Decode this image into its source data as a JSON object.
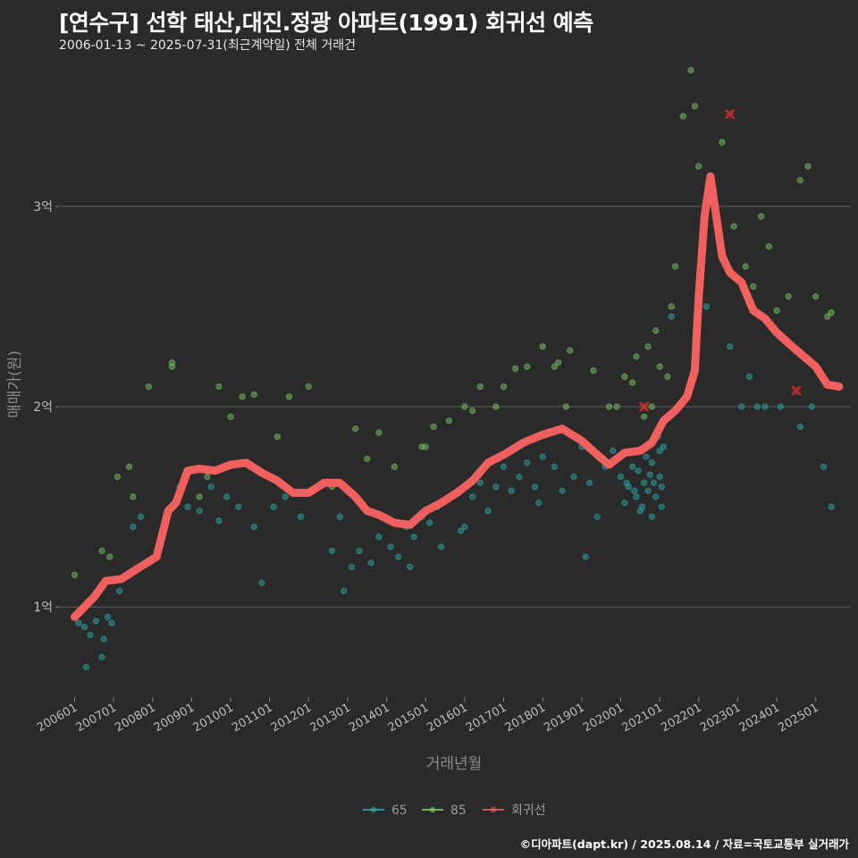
{
  "title": "[연수구] 선학 태산,대진.정광 아파트(1991) 회귀선 예측",
  "subtitle": "2006-01-13 ~ 2025-07-31(최근계약일) 전체 거래건",
  "footer": "©디아파트(dapt.kr) / 2025.08.14 / 자료=국토교통부 실거래가",
  "chart_data": {
    "type": "scatter",
    "xlabel": "거래년월",
    "ylabel": "매매가(원)",
    "xlim": [
      2005.6,
      2025.9
    ],
    "ylim": [
      0.55,
      3.7
    ],
    "y_unit": "억",
    "yticks": [
      {
        "v": 1,
        "label": "1억"
      },
      {
        "v": 2,
        "label": "2억"
      },
      {
        "v": 3,
        "label": "3억"
      }
    ],
    "xticks": [
      "200601",
      "200701",
      "200801",
      "200901",
      "201001",
      "201101",
      "201201",
      "201301",
      "201401",
      "201501",
      "201601",
      "201701",
      "201801",
      "201901",
      "202001",
      "202101",
      "202201",
      "202301",
      "202401",
      "202501"
    ],
    "colors": {
      "s65": "#2bb3b1",
      "s85": "#7fd26b",
      "reg": "#f0605f",
      "marker": "#c8312f"
    },
    "legend": [
      {
        "name": "65",
        "color": "#2bb3b1"
      },
      {
        "name": "85",
        "color": "#7fd26b"
      },
      {
        "name": "회귀선",
        "color": "#f0605f"
      }
    ],
    "series": [
      {
        "name": "65",
        "points": [
          [
            2006.1,
            0.92
          ],
          [
            2006.25,
            0.9
          ],
          [
            2006.4,
            0.86
          ],
          [
            2006.55,
            0.93
          ],
          [
            2006.75,
            0.84
          ],
          [
            2006.85,
            0.95
          ],
          [
            2006.3,
            0.7
          ],
          [
            2006.7,
            0.75
          ],
          [
            2006.95,
            0.92
          ],
          [
            2007.15,
            1.08
          ],
          [
            2007.5,
            1.4
          ],
          [
            2007.7,
            1.45
          ],
          [
            2008.7,
            1.6
          ],
          [
            2008.9,
            1.5
          ],
          [
            2009.2,
            1.48
          ],
          [
            2009.5,
            1.6
          ],
          [
            2009.7,
            1.43
          ],
          [
            2009.9,
            1.55
          ],
          [
            2010.2,
            1.5
          ],
          [
            2010.6,
            1.4
          ],
          [
            2010.8,
            1.12
          ],
          [
            2011.1,
            1.5
          ],
          [
            2011.4,
            1.55
          ],
          [
            2011.8,
            1.45
          ],
          [
            2012.2,
            1.6
          ],
          [
            2012.6,
            1.28
          ],
          [
            2012.8,
            1.45
          ],
          [
            2013.1,
            1.2
          ],
          [
            2013.3,
            1.28
          ],
          [
            2013.6,
            1.22
          ],
          [
            2013.8,
            1.35
          ],
          [
            2014.1,
            1.3
          ],
          [
            2014.3,
            1.25
          ],
          [
            2014.5,
            1.4
          ],
          [
            2014.7,
            1.35
          ],
          [
            2014.9,
            1.45
          ],
          [
            2015.1,
            1.42
          ],
          [
            2015.3,
            1.5
          ],
          [
            2015.4,
            1.3
          ],
          [
            2015.6,
            1.55
          ],
          [
            2015.9,
            1.38
          ],
          [
            2016.2,
            1.55
          ],
          [
            2016.4,
            1.62
          ],
          [
            2016.6,
            1.48
          ],
          [
            2016.8,
            1.6
          ],
          [
            2017.0,
            1.7
          ],
          [
            2017.2,
            1.58
          ],
          [
            2017.4,
            1.65
          ],
          [
            2017.6,
            1.72
          ],
          [
            2017.8,
            1.6
          ],
          [
            2018.0,
            1.75
          ],
          [
            2018.3,
            1.7
          ],
          [
            2018.5,
            1.58
          ],
          [
            2018.8,
            1.65
          ],
          [
            2019.0,
            1.8
          ],
          [
            2019.2,
            1.62
          ],
          [
            2019.4,
            1.45
          ],
          [
            2019.6,
            1.7
          ],
          [
            2019.8,
            1.78
          ],
          [
            2020.0,
            1.65
          ],
          [
            2020.1,
            1.52
          ],
          [
            2020.2,
            1.6
          ],
          [
            2020.3,
            1.7
          ],
          [
            2020.4,
            1.55
          ],
          [
            2020.5,
            1.48
          ],
          [
            2020.6,
            1.62
          ],
          [
            2020.7,
            1.58
          ],
          [
            2020.8,
            1.72
          ],
          [
            2020.9,
            1.55
          ],
          [
            2021.0,
            1.65
          ],
          [
            2021.05,
            1.5
          ],
          [
            2021.1,
            1.8
          ],
          [
            2020.45,
            1.68
          ],
          [
            2020.65,
            1.75
          ],
          [
            2020.85,
            1.62
          ],
          [
            2020.95,
            1.85
          ],
          [
            2020.55,
            1.5
          ],
          [
            2020.75,
            1.66
          ],
          [
            2021.0,
            1.78
          ],
          [
            2020.35,
            1.58
          ],
          [
            2021.3,
            2.45
          ],
          [
            2022.2,
            2.5
          ],
          [
            2022.8,
            2.3
          ],
          [
            2023.1,
            2.0
          ],
          [
            2023.3,
            2.15
          ],
          [
            2023.5,
            2.0
          ],
          [
            2023.7,
            2.0
          ],
          [
            2024.1,
            2.0
          ],
          [
            2024.6,
            1.9
          ],
          [
            2024.9,
            2.0
          ],
          [
            2025.2,
            1.7
          ],
          [
            2025.4,
            1.5
          ],
          [
            2020.15,
            1.62
          ],
          [
            2020.8,
            1.45
          ],
          [
            2021.05,
            1.6
          ],
          [
            2017.9,
            1.52
          ],
          [
            2016.0,
            1.4
          ],
          [
            2019.1,
            1.25
          ],
          [
            2014.6,
            1.2
          ],
          [
            2012.9,
            1.08
          ]
        ]
      },
      {
        "name": "85",
        "points": [
          [
            2006.0,
            1.16
          ],
          [
            2006.9,
            1.25
          ],
          [
            2007.1,
            1.65
          ],
          [
            2007.4,
            1.7
          ],
          [
            2007.9,
            2.1
          ],
          [
            2008.5,
            2.22
          ],
          [
            2008.5,
            2.2
          ],
          [
            2009.2,
            1.55
          ],
          [
            2009.7,
            2.1
          ],
          [
            2010.0,
            1.95
          ],
          [
            2010.3,
            2.05
          ],
          [
            2010.6,
            2.06
          ],
          [
            2011.5,
            2.05
          ],
          [
            2012.0,
            2.1
          ],
          [
            2012.6,
            1.6
          ],
          [
            2013.2,
            1.89
          ],
          [
            2013.5,
            1.74
          ],
          [
            2013.8,
            1.87
          ],
          [
            2014.2,
            1.7
          ],
          [
            2014.9,
            1.8
          ],
          [
            2015.2,
            1.9
          ],
          [
            2015.6,
            1.93
          ],
          [
            2016.0,
            2.0
          ],
          [
            2016.4,
            2.1
          ],
          [
            2016.8,
            2.0
          ],
          [
            2017.3,
            2.19
          ],
          [
            2017.6,
            2.2
          ],
          [
            2018.0,
            2.3
          ],
          [
            2018.3,
            2.2
          ],
          [
            2018.7,
            2.28
          ],
          [
            2018.4,
            2.22
          ],
          [
            2019.3,
            2.18
          ],
          [
            2019.7,
            2.0
          ],
          [
            2020.1,
            2.15
          ],
          [
            2020.4,
            2.25
          ],
          [
            2020.7,
            2.3
          ],
          [
            2020.9,
            2.38
          ],
          [
            2021.0,
            2.2
          ],
          [
            2021.2,
            2.15
          ],
          [
            2021.3,
            2.5
          ],
          [
            2021.4,
            2.7
          ],
          [
            2021.6,
            3.45
          ],
          [
            2021.8,
            3.68
          ],
          [
            2021.9,
            3.5
          ],
          [
            2022.0,
            3.2
          ],
          [
            2022.6,
            3.32
          ],
          [
            2022.9,
            2.9
          ],
          [
            2023.2,
            2.7
          ],
          [
            2023.4,
            2.6
          ],
          [
            2023.6,
            2.95
          ],
          [
            2023.8,
            2.8
          ],
          [
            2024.0,
            2.48
          ],
          [
            2024.3,
            2.55
          ],
          [
            2024.6,
            3.13
          ],
          [
            2024.8,
            3.2
          ],
          [
            2025.0,
            2.55
          ],
          [
            2025.3,
            2.45
          ],
          [
            2025.4,
            2.47
          ],
          [
            2020.3,
            2.12
          ],
          [
            2020.6,
            1.95
          ],
          [
            2020.8,
            2.0
          ],
          [
            2019.9,
            2.0
          ],
          [
            2016.2,
            1.98
          ],
          [
            2017.0,
            2.1
          ],
          [
            2018.6,
            2.0
          ],
          [
            2006.7,
            1.28
          ],
          [
            2007.5,
            1.55
          ],
          [
            2009.4,
            1.65
          ],
          [
            2011.2,
            1.85
          ],
          [
            2015.0,
            1.8
          ]
        ]
      },
      {
        "name": "회귀선",
        "points": [
          [
            2006.0,
            0.95
          ],
          [
            2006.5,
            1.05
          ],
          [
            2006.8,
            1.13
          ],
          [
            2007.2,
            1.14
          ],
          [
            2007.6,
            1.19
          ],
          [
            2008.1,
            1.25
          ],
          [
            2008.4,
            1.48
          ],
          [
            2008.6,
            1.52
          ],
          [
            2008.9,
            1.68
          ],
          [
            2009.2,
            1.69
          ],
          [
            2009.6,
            1.68
          ],
          [
            2010.0,
            1.71
          ],
          [
            2010.4,
            1.72
          ],
          [
            2010.8,
            1.67
          ],
          [
            2011.2,
            1.63
          ],
          [
            2011.6,
            1.57
          ],
          [
            2012.0,
            1.57
          ],
          [
            2012.4,
            1.62
          ],
          [
            2012.8,
            1.62
          ],
          [
            2013.2,
            1.55
          ],
          [
            2013.5,
            1.48
          ],
          [
            2013.8,
            1.46
          ],
          [
            2014.2,
            1.42
          ],
          [
            2014.6,
            1.41
          ],
          [
            2015.0,
            1.48
          ],
          [
            2015.4,
            1.52
          ],
          [
            2015.8,
            1.57
          ],
          [
            2016.2,
            1.63
          ],
          [
            2016.6,
            1.72
          ],
          [
            2017.0,
            1.76
          ],
          [
            2017.5,
            1.82
          ],
          [
            2018.0,
            1.86
          ],
          [
            2018.5,
            1.89
          ],
          [
            2019.0,
            1.83
          ],
          [
            2019.4,
            1.76
          ],
          [
            2019.7,
            1.71
          ],
          [
            2020.1,
            1.77
          ],
          [
            2020.5,
            1.78
          ],
          [
            2020.8,
            1.82
          ],
          [
            2021.1,
            1.93
          ],
          [
            2021.4,
            1.98
          ],
          [
            2021.7,
            2.05
          ],
          [
            2021.9,
            2.18
          ],
          [
            2022.0,
            2.55
          ],
          [
            2022.15,
            2.95
          ],
          [
            2022.3,
            3.15
          ],
          [
            2022.45,
            2.95
          ],
          [
            2022.6,
            2.75
          ],
          [
            2022.8,
            2.67
          ],
          [
            2023.1,
            2.62
          ],
          [
            2023.4,
            2.48
          ],
          [
            2023.7,
            2.44
          ],
          [
            2024.0,
            2.37
          ],
          [
            2024.4,
            2.3
          ],
          [
            2024.7,
            2.25
          ],
          [
            2025.0,
            2.2
          ],
          [
            2025.3,
            2.11
          ],
          [
            2025.6,
            2.1
          ]
        ]
      }
    ],
    "markers": [
      [
        2020.6,
        2.0
      ],
      [
        2022.8,
        3.46
      ],
      [
        2024.5,
        2.08
      ]
    ]
  }
}
